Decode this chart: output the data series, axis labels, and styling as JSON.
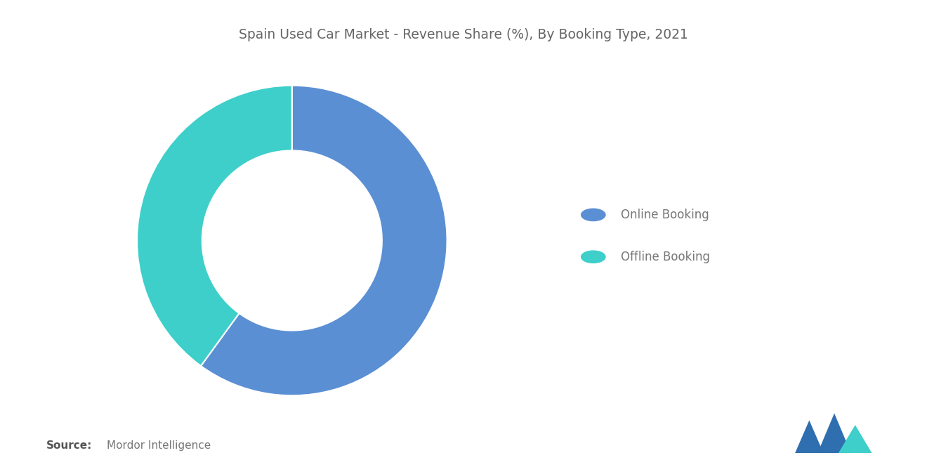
{
  "title": "Spain Used Car Market - Revenue Share (%), By Booking Type, 2021",
  "slices": [
    {
      "label": "Online Booking",
      "value": 60,
      "color": "#5B8FD4"
    },
    {
      "label": "Offline Booking",
      "value": 40,
      "color": "#3ECFCA"
    }
  ],
  "donut_width": 0.42,
  "background_color": "#ffffff",
  "title_fontsize": 13.5,
  "title_color": "#666666",
  "legend_fontsize": 12,
  "legend_marker_size": 10,
  "source_bold": "Source:",
  "source_normal": "  Mordor Intelligence",
  "source_fontsize": 11,
  "source_color_bold": "#555555",
  "source_color_normal": "#777777",
  "startangle": 90,
  "logo_blue": "#2F6EAF",
  "logo_teal": "#3ECFCA"
}
